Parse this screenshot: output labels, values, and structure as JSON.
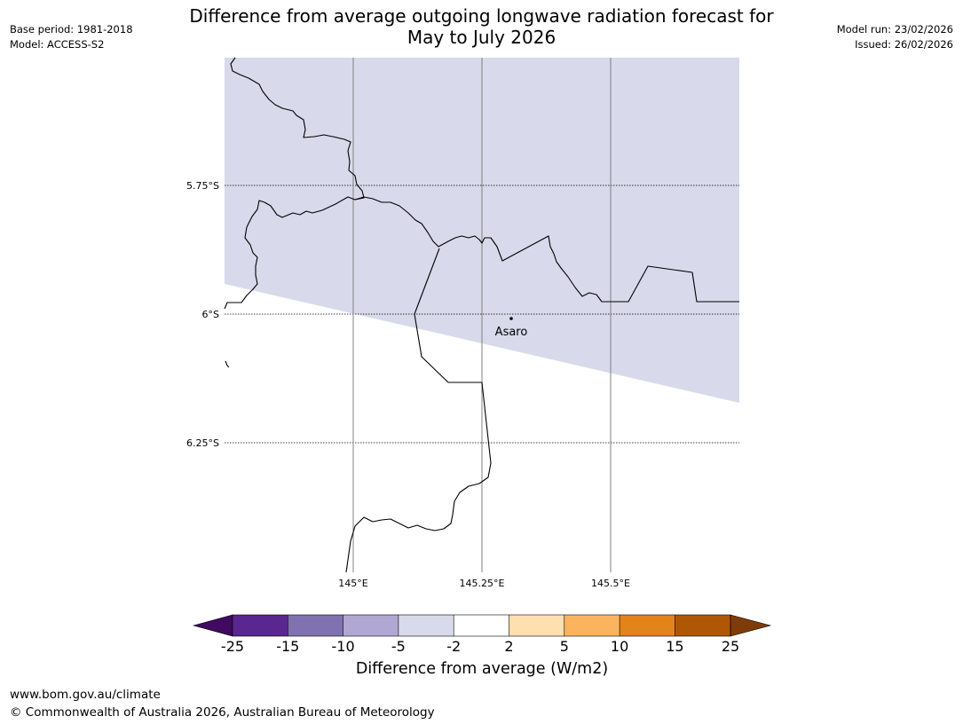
{
  "header": {
    "title_line1": "Difference from average outgoing longwave radiation forecast for",
    "title_line2": "May to July 2026",
    "base_period": "Base period: 1981-2018",
    "model": "Model: ACCESS-S2",
    "model_run": "Model run: 23/02/2026",
    "issued": "Issued: 26/02/2026"
  },
  "map": {
    "lat_labels": [
      "5.75°S",
      "6°S",
      "6.25°S"
    ],
    "lon_labels": [
      "145°E",
      "145.25°E",
      "145.5°E"
    ],
    "place_name": "Asaro",
    "colors": {
      "shaded_region": "#d8d9ea",
      "coast_border": "#000000",
      "grid_lat": "#000000",
      "grid_lon": "#808080"
    }
  },
  "colorbar": {
    "tick_labels": [
      "-25",
      "-15",
      "-10",
      "-5",
      "-2",
      "2",
      "5",
      "10",
      "15",
      "25"
    ],
    "label": "Difference from average (W/m2)",
    "colors": [
      "#3f0a60",
      "#5a2690",
      "#8072b0",
      "#b0a8d2",
      "#d8d9ea",
      "#ffffff",
      "#fddfb0",
      "#fbb45e",
      "#e28419",
      "#b05706",
      "#7f3b08"
    ]
  },
  "footer": {
    "url": "www.bom.gov.au/climate",
    "copyright": "© Commonwealth of Australia 2026, Australian Bureau of Meteorology"
  }
}
